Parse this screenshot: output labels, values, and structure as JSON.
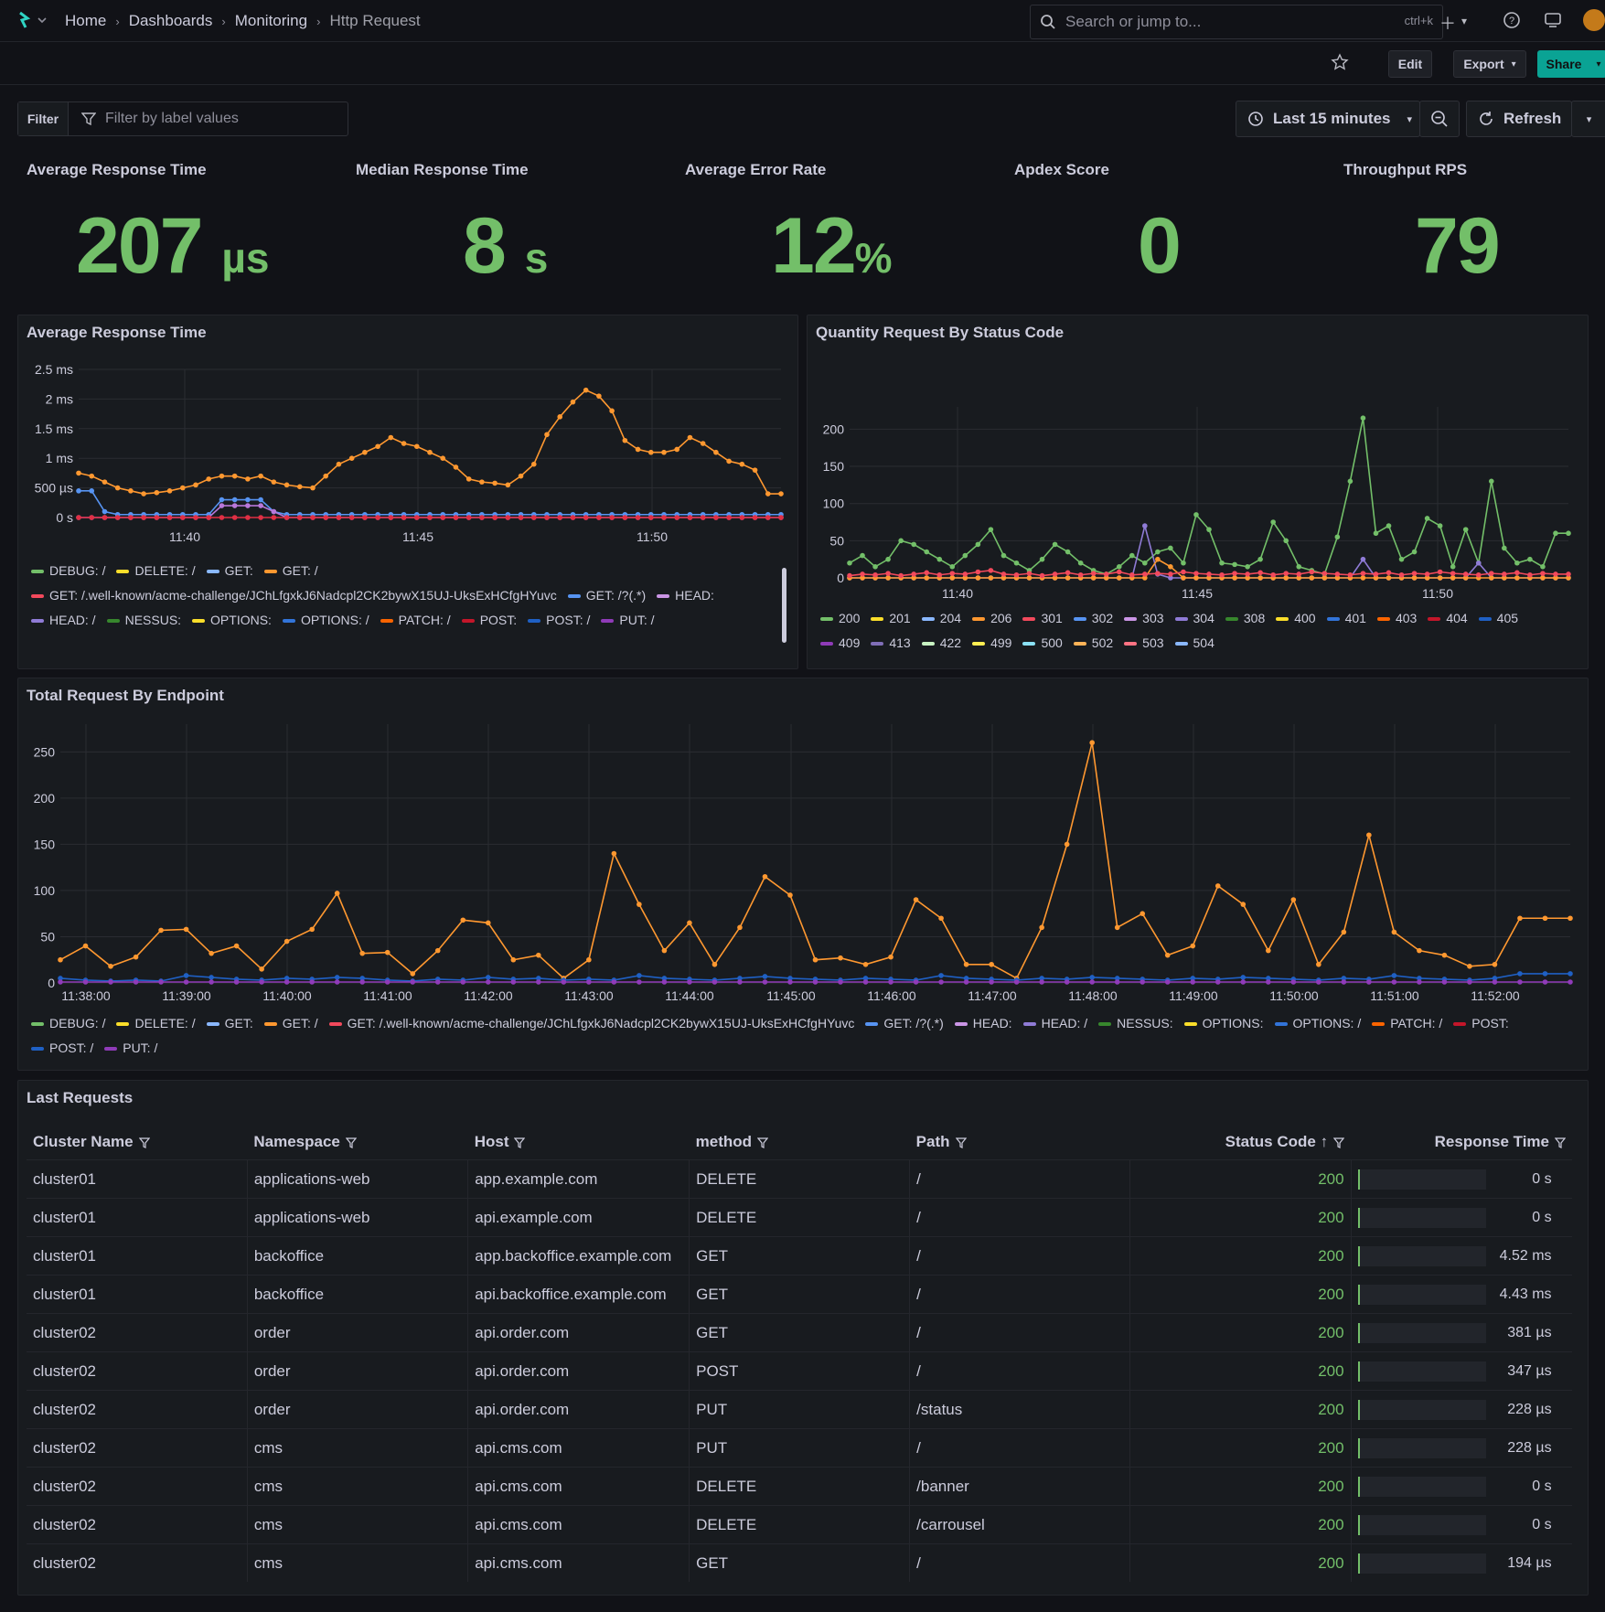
{
  "breadcrumb": {
    "home": "Home",
    "dashboards": "Dashboards",
    "monitoring": "Monitoring",
    "current": "Http Request"
  },
  "search": {
    "placeholder": "Search or jump to...",
    "shortcut": "ctrl+k"
  },
  "toolbar": {
    "edit": "Edit",
    "export": "Export",
    "share": "Share"
  },
  "filter": {
    "label": "Filter",
    "placeholder": "Filter by label values"
  },
  "time": {
    "range": "Last 15 minutes",
    "refresh": "Refresh"
  },
  "stats": [
    {
      "title": "Average Response Time",
      "value": "207",
      "unit": "µs"
    },
    {
      "title": "Median Response Time",
      "value": "8",
      "unit": "s"
    },
    {
      "title": "Average Error Rate",
      "value": "12",
      "unit": "%"
    },
    {
      "title": "Apdex Score",
      "value": "0",
      "unit": ""
    },
    {
      "title": "Throughput RPS",
      "value": "79",
      "unit": ""
    }
  ],
  "colors": {
    "accent": "#73bf69",
    "orange": "#ff9830",
    "blue": "#5794f2",
    "purple": "#b877d9",
    "teal": "#0aa394"
  },
  "chart_data": [
    {
      "type": "line",
      "title": "Average Response Time",
      "yticks": [
        "0 s",
        "500 µs",
        "1 ms",
        "1.5 ms",
        "2 ms",
        "2.5 ms"
      ],
      "xticks": [
        "11:40",
        "11:45",
        "11:50"
      ],
      "ylim": [
        0,
        2.5
      ],
      "yunit": "ms",
      "series": [
        {
          "name": "GET: /",
          "color": "#ff9830",
          "values": [
            0.75,
            0.7,
            0.6,
            0.5,
            0.45,
            0.4,
            0.42,
            0.45,
            0.5,
            0.55,
            0.65,
            0.7,
            0.7,
            0.65,
            0.7,
            0.6,
            0.55,
            0.52,
            0.5,
            0.7,
            0.9,
            1.0,
            1.1,
            1.2,
            1.35,
            1.25,
            1.2,
            1.1,
            1.0,
            0.85,
            0.65,
            0.6,
            0.58,
            0.55,
            0.7,
            0.9,
            1.4,
            1.7,
            1.95,
            2.15,
            2.05,
            1.8,
            1.3,
            1.15,
            1.1,
            1.1,
            1.15,
            1.35,
            1.25,
            1.1,
            0.95,
            0.9,
            0.8,
            0.4,
            0.4
          ]
        },
        {
          "name": "GET:",
          "color": "#5794f2",
          "values": [
            0.45,
            0.45,
            0.1,
            0.05,
            0.05,
            0.05,
            0.05,
            0.05,
            0.05,
            0.05,
            0.05,
            0.3,
            0.3,
            0.3,
            0.3,
            0.1,
            0.05,
            0.05,
            0.05,
            0.05,
            0.05,
            0.05,
            0.05,
            0.05,
            0.05,
            0.05,
            0.05,
            0.05,
            0.05,
            0.05,
            0.05,
            0.05,
            0.05,
            0.05,
            0.05,
            0.05,
            0.05,
            0.05,
            0.05,
            0.05,
            0.05,
            0.05,
            0.05,
            0.05,
            0.05,
            0.05,
            0.05,
            0.05,
            0.05,
            0.05,
            0.05,
            0.05,
            0.05,
            0.05,
            0.05
          ]
        },
        {
          "name": "HEAD: /",
          "color": "#b877d9",
          "values": [
            0,
            0,
            0,
            0,
            0,
            0,
            0,
            0,
            0,
            0,
            0,
            0.2,
            0.2,
            0.2,
            0.2,
            0.1,
            0,
            0,
            0,
            0,
            0,
            0,
            0,
            0,
            0,
            0,
            0,
            0,
            0,
            0,
            0,
            0,
            0,
            0,
            0,
            0,
            0,
            0,
            0,
            0,
            0,
            0,
            0,
            0,
            0,
            0,
            0,
            0,
            0,
            0,
            0,
            0,
            0,
            0,
            0
          ]
        },
        {
          "name": "POST:",
          "color": "#e02f44",
          "values": [
            0,
            0,
            0,
            0,
            0,
            0,
            0,
            0,
            0,
            0,
            0,
            0,
            0,
            0,
            0,
            0,
            0,
            0,
            0,
            0,
            0,
            0,
            0,
            0,
            0,
            0,
            0,
            0,
            0,
            0,
            0,
            0,
            0,
            0,
            0,
            0,
            0,
            0,
            0,
            0,
            0,
            0,
            0,
            0,
            0,
            0,
            0,
            0,
            0,
            0,
            0,
            0,
            0,
            0,
            0
          ]
        }
      ],
      "legend": [
        {
          "name": "DEBUG: /",
          "color": "#73bf69"
        },
        {
          "name": "DELETE: /",
          "color": "#fade2a"
        },
        {
          "name": "GET:",
          "color": "#8ab8ff"
        },
        {
          "name": "GET: /",
          "color": "#ff9830"
        },
        {
          "name": "GET: /.well-known/acme-challenge/JChLfgxkJ6Nadcpl2CK2bywX15UJ-UksExHCfgHYuvc",
          "color": "#f2495c"
        },
        {
          "name": "GET: /?(.*)",
          "color": "#5794f2"
        },
        {
          "name": "HEAD:",
          "color": "#ca95e5"
        },
        {
          "name": "HEAD: /",
          "color": "#8f7bd6"
        },
        {
          "name": "NESSUS:",
          "color": "#37872d"
        },
        {
          "name": "OPTIONS:",
          "color": "#fade2a"
        },
        {
          "name": "OPTIONS: /",
          "color": "#3274d9"
        },
        {
          "name": "PATCH: /",
          "color": "#fa6400"
        },
        {
          "name": "POST:",
          "color": "#c4162a"
        },
        {
          "name": "POST: /",
          "color": "#1f60c4"
        },
        {
          "name": "PUT: /",
          "color": "#8f3bb8"
        }
      ]
    },
    {
      "type": "line",
      "title": "Quantity Request By Status Code",
      "yticks": [
        "0",
        "50",
        "100",
        "150",
        "200"
      ],
      "xticks": [
        "11:40",
        "11:45",
        "11:50"
      ],
      "ylim": [
        0,
        230
      ],
      "series": [
        {
          "name": "200",
          "color": "#73bf69",
          "values": [
            20,
            30,
            15,
            25,
            50,
            45,
            35,
            25,
            15,
            30,
            45,
            65,
            30,
            20,
            10,
            25,
            45,
            35,
            20,
            10,
            5,
            15,
            30,
            20,
            35,
            40,
            20,
            85,
            65,
            20,
            18,
            15,
            25,
            75,
            50,
            15,
            10,
            5,
            55,
            130,
            215,
            60,
            70,
            25,
            35,
            80,
            70,
            15,
            65,
            20,
            130,
            40,
            20,
            25,
            15,
            60,
            60
          ]
        },
        {
          "name": "304",
          "color": "#8f7bd6",
          "values": [
            0,
            0,
            0,
            0,
            0,
            0,
            0,
            0,
            0,
            0,
            0,
            0,
            0,
            0,
            0,
            0,
            0,
            0,
            0,
            0,
            0,
            0,
            0,
            70,
            5,
            0,
            0,
            0,
            0,
            0,
            0,
            0,
            0,
            0,
            0,
            0,
            0,
            0,
            0,
            0,
            25,
            0,
            0,
            0,
            0,
            0,
            0,
            0,
            0,
            20,
            0,
            0,
            0,
            0,
            0,
            0,
            0
          ]
        },
        {
          "name": "206",
          "color": "#ff9830",
          "values": [
            0,
            0,
            0,
            0,
            0,
            0,
            0,
            0,
            0,
            0,
            0,
            0,
            0,
            0,
            0,
            0,
            0,
            0,
            0,
            0,
            0,
            0,
            0,
            0,
            25,
            15,
            0,
            0,
            0,
            0,
            0,
            0,
            0,
            0,
            0,
            0,
            0,
            0,
            0,
            0,
            0,
            0,
            0,
            0,
            0,
            0,
            0,
            0,
            0,
            0,
            0,
            0,
            0,
            0,
            0,
            0,
            0
          ]
        },
        {
          "name": "301",
          "color": "#f2495c",
          "values": [
            3,
            5,
            4,
            6,
            3,
            5,
            7,
            4,
            6,
            5,
            8,
            10,
            5,
            4,
            6,
            3,
            5,
            7,
            4,
            6,
            5,
            8,
            4,
            5,
            6,
            5,
            8,
            6,
            5,
            4,
            6,
            5,
            7,
            4,
            6,
            5,
            8,
            6,
            5,
            4,
            6,
            5,
            7,
            4,
            6,
            5,
            8,
            6,
            5,
            4,
            6,
            5,
            7,
            4,
            6,
            5,
            5
          ]
        }
      ],
      "legend": [
        {
          "name": "200",
          "color": "#73bf69"
        },
        {
          "name": "201",
          "color": "#fade2a"
        },
        {
          "name": "204",
          "color": "#8ab8ff"
        },
        {
          "name": "206",
          "color": "#ff9830"
        },
        {
          "name": "301",
          "color": "#f2495c"
        },
        {
          "name": "302",
          "color": "#5794f2"
        },
        {
          "name": "303",
          "color": "#ca95e5"
        },
        {
          "name": "304",
          "color": "#8f7bd6"
        },
        {
          "name": "308",
          "color": "#37872d"
        },
        {
          "name": "400",
          "color": "#fade2a"
        },
        {
          "name": "401",
          "color": "#3274d9"
        },
        {
          "name": "403",
          "color": "#fa6400"
        },
        {
          "name": "404",
          "color": "#c4162a"
        },
        {
          "name": "405",
          "color": "#1f60c4"
        },
        {
          "name": "409",
          "color": "#8f3bb8"
        },
        {
          "name": "413",
          "color": "#806eb7"
        },
        {
          "name": "422",
          "color": "#c8f2c2"
        },
        {
          "name": "499",
          "color": "#ffee52"
        },
        {
          "name": "500",
          "color": "#8ae1f5"
        },
        {
          "name": "502",
          "color": "#ffb357"
        },
        {
          "name": "503",
          "color": "#ff7383"
        },
        {
          "name": "504",
          "color": "#8ab8ff"
        }
      ]
    },
    {
      "type": "line",
      "title": "Total Request By Endpoint",
      "yticks": [
        "0",
        "50",
        "100",
        "150",
        "200",
        "250"
      ],
      "xticks": [
        "11:38:00",
        "11:39:00",
        "11:40:00",
        "11:41:00",
        "11:42:00",
        "11:43:00",
        "11:44:00",
        "11:45:00",
        "11:46:00",
        "11:47:00",
        "11:48:00",
        "11:49:00",
        "11:50:00",
        "11:51:00",
        "11:52:00"
      ],
      "ylim": [
        0,
        280
      ],
      "series": [
        {
          "name": "GET: /",
          "color": "#ff9830",
          "values": [
            25,
            40,
            18,
            28,
            57,
            58,
            32,
            40,
            15,
            45,
            58,
            97,
            32,
            33,
            10,
            35,
            68,
            65,
            25,
            30,
            5,
            25,
            140,
            85,
            35,
            65,
            20,
            60,
            115,
            95,
            25,
            27,
            20,
            28,
            90,
            70,
            20,
            20,
            5,
            60,
            150,
            260,
            60,
            75,
            30,
            40,
            105,
            85,
            35,
            90,
            20,
            55,
            160,
            55,
            35,
            30,
            18,
            20,
            70,
            70,
            70
          ]
        },
        {
          "name": "GET:",
          "color": "#1f60c4",
          "values": [
            5,
            3,
            2,
            3,
            2,
            8,
            6,
            4,
            3,
            5,
            4,
            6,
            5,
            3,
            2,
            4,
            3,
            6,
            4,
            5,
            3,
            4,
            3,
            8,
            5,
            4,
            3,
            5,
            7,
            5,
            4,
            3,
            5,
            4,
            3,
            8,
            5,
            4,
            3,
            5,
            4,
            6,
            5,
            4,
            3,
            5,
            4,
            6,
            5,
            4,
            3,
            5,
            4,
            8,
            5,
            4,
            3,
            5,
            10,
            10,
            10
          ]
        },
        {
          "name": "PUT: /",
          "color": "#8f3bb8",
          "values": [
            1,
            1,
            1,
            1,
            1,
            1,
            1,
            1,
            1,
            1,
            1,
            1,
            1,
            1,
            1,
            1,
            1,
            1,
            1,
            1,
            1,
            1,
            1,
            1,
            1,
            1,
            1,
            1,
            1,
            1,
            1,
            1,
            1,
            1,
            1,
            1,
            1,
            1,
            1,
            1,
            1,
            1,
            1,
            1,
            1,
            1,
            1,
            1,
            1,
            1,
            1,
            1,
            1,
            1,
            1,
            1,
            1,
            1,
            1,
            1,
            1
          ]
        }
      ],
      "legend": [
        {
          "name": "DEBUG: /",
          "color": "#73bf69"
        },
        {
          "name": "DELETE: /",
          "color": "#fade2a"
        },
        {
          "name": "GET:",
          "color": "#8ab8ff"
        },
        {
          "name": "GET: /",
          "color": "#ff9830"
        },
        {
          "name": "GET: /.well-known/acme-challenge/JChLfgxkJ6Nadcpl2CK2bywX15UJ-UksExHCfgHYuvc",
          "color": "#f2495c"
        },
        {
          "name": "GET: /?(.*)",
          "color": "#5794f2"
        },
        {
          "name": "HEAD:",
          "color": "#ca95e5"
        },
        {
          "name": "HEAD: /",
          "color": "#8f7bd6"
        },
        {
          "name": "NESSUS:",
          "color": "#37872d"
        },
        {
          "name": "OPTIONS:",
          "color": "#fade2a"
        },
        {
          "name": "OPTIONS: /",
          "color": "#3274d9"
        },
        {
          "name": "PATCH: /",
          "color": "#fa6400"
        },
        {
          "name": "POST:",
          "color": "#c4162a"
        },
        {
          "name": "POST: /",
          "color": "#1f60c4"
        },
        {
          "name": "PUT: /",
          "color": "#8f3bb8"
        }
      ]
    }
  ],
  "table": {
    "title": "Last Requests",
    "columns": [
      "Cluster Name",
      "Namespace",
      "Host",
      "method",
      "Path",
      "Status Code",
      "Response Time"
    ],
    "rows": [
      [
        "cluster01",
        "applications-web",
        "app.example.com",
        "DELETE",
        "/",
        "200",
        "0 s"
      ],
      [
        "cluster01",
        "applications-web",
        "api.example.com",
        "DELETE",
        "/",
        "200",
        "0 s"
      ],
      [
        "cluster01",
        "backoffice",
        "app.backoffice.example.com",
        "GET",
        "/",
        "200",
        "4.52 ms"
      ],
      [
        "cluster01",
        "backoffice",
        "api.backoffice.example.com",
        "GET",
        "/",
        "200",
        "4.43 ms"
      ],
      [
        "cluster02",
        "order",
        "api.order.com",
        "GET",
        "/",
        "200",
        "381 µs"
      ],
      [
        "cluster02",
        "order",
        "api.order.com",
        "POST",
        "/",
        "200",
        "347 µs"
      ],
      [
        "cluster02",
        "order",
        "api.order.com",
        "PUT",
        "/status",
        "200",
        "228 µs"
      ],
      [
        "cluster02",
        "cms",
        "api.cms.com",
        "PUT",
        "/",
        "200",
        "228 µs"
      ],
      [
        "cluster02",
        "cms",
        "api.cms.com",
        "DELETE",
        "/banner",
        "200",
        "0 s"
      ],
      [
        "cluster02",
        "cms",
        "api.cms.com",
        "DELETE",
        "/carrousel",
        "200",
        "0 s"
      ],
      [
        "cluster02",
        "cms",
        "api.cms.com",
        "GET",
        "/",
        "200",
        "194 µs"
      ]
    ]
  }
}
